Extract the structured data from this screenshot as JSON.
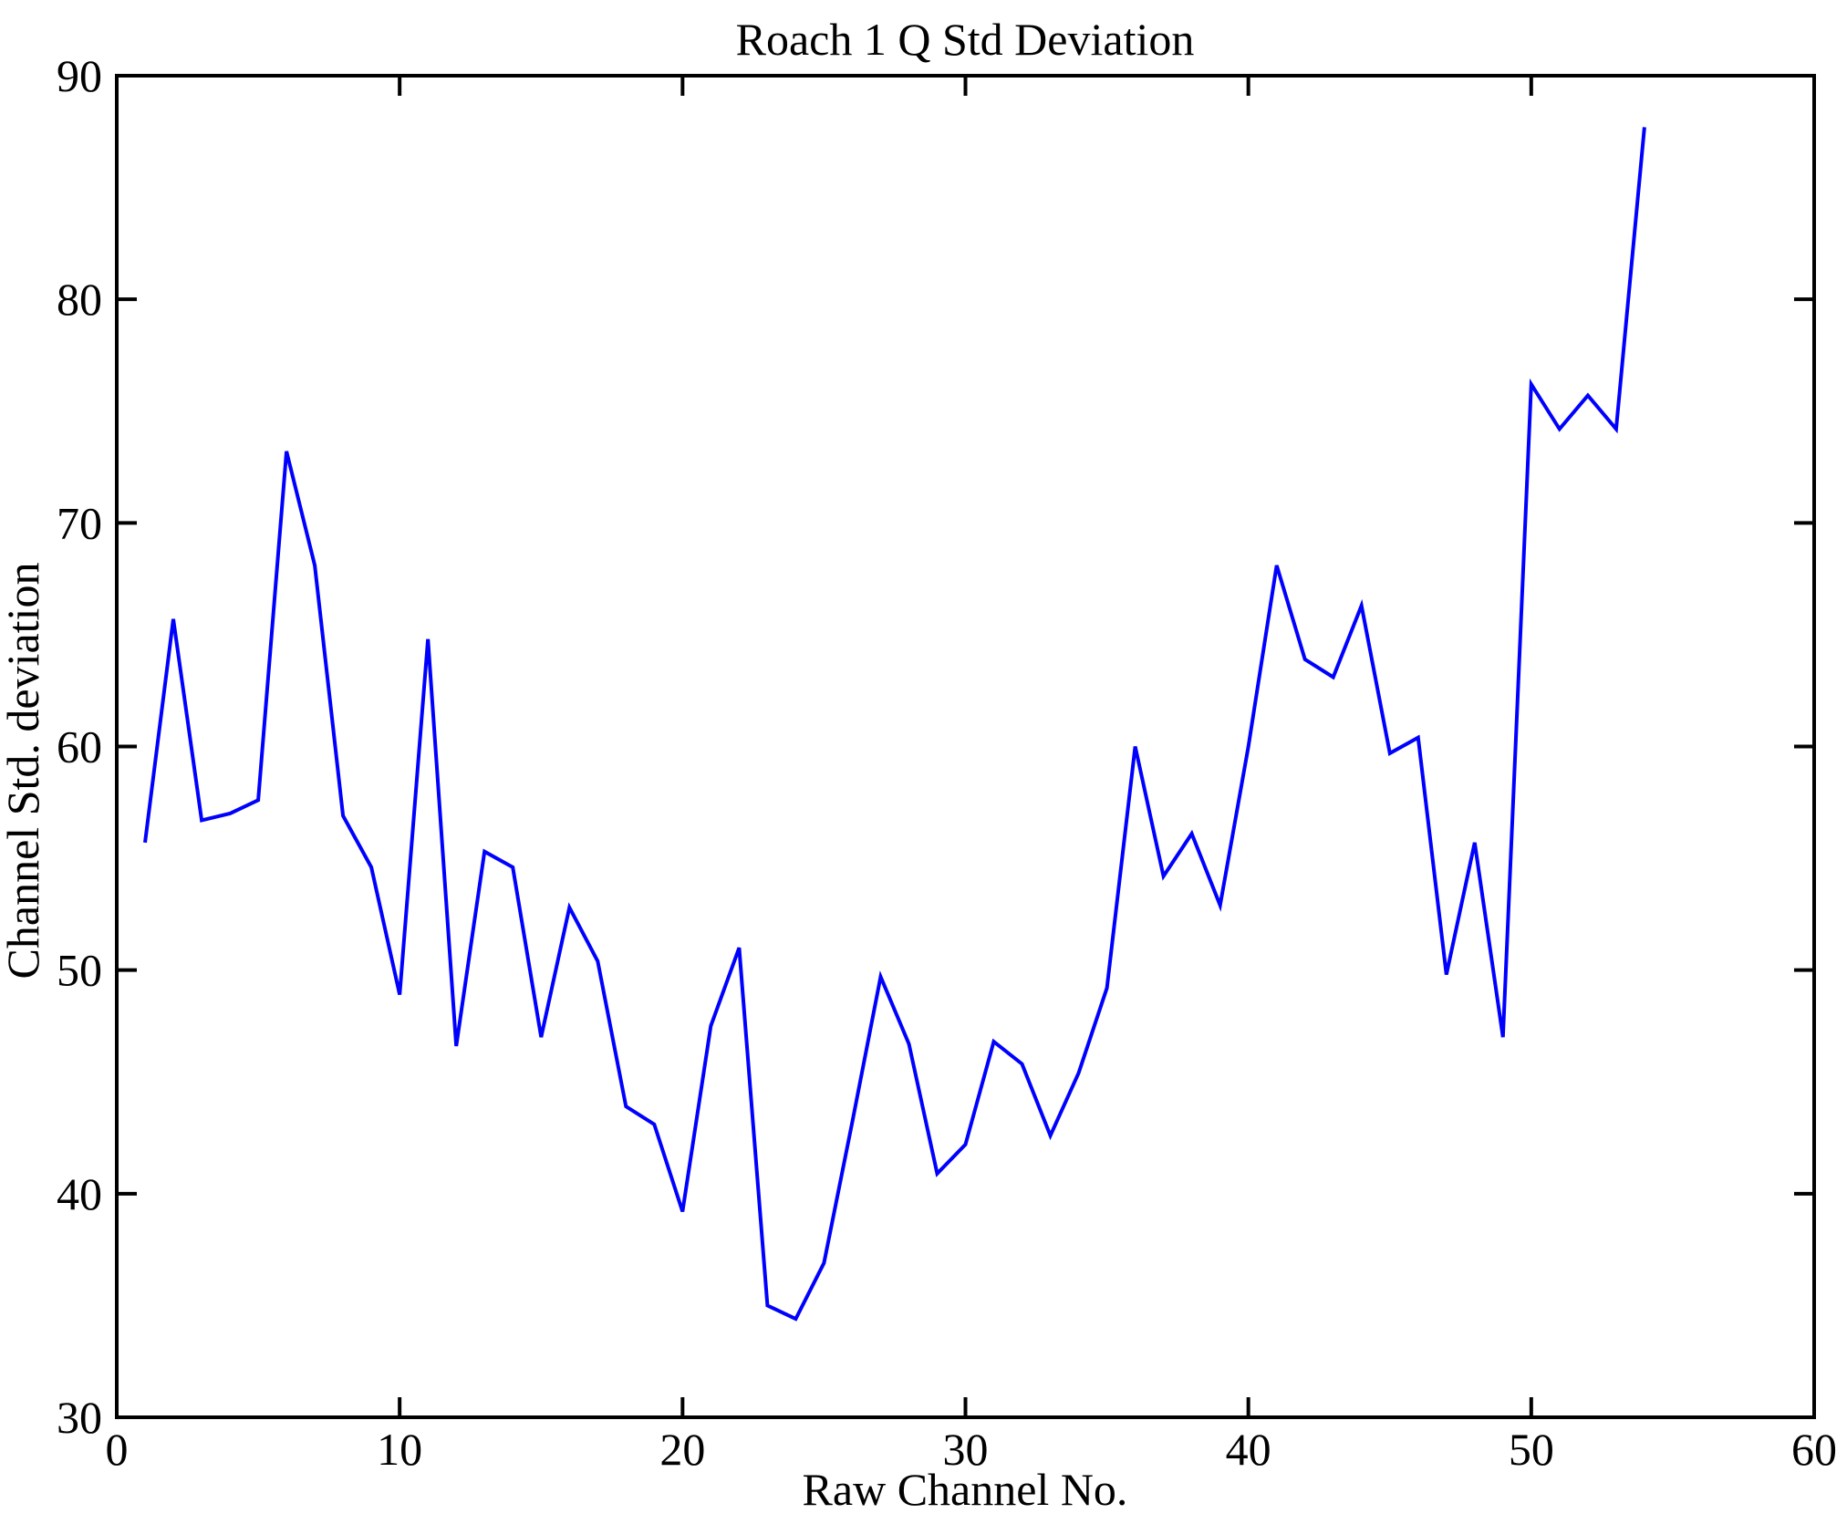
{
  "figure": {
    "title": "Roach 1 Q Std Deviation",
    "background": "#ffffff"
  },
  "chart_data": {
    "type": "line",
    "title": "Roach 1 Q Std Deviation",
    "xlabel": "Raw Channel No.",
    "ylabel": "Channel Std. deviation",
    "xlim": [
      0,
      60
    ],
    "ylim": [
      30,
      90
    ],
    "xticks": [
      0,
      10,
      20,
      30,
      40,
      50,
      60
    ],
    "yticks": [
      30,
      40,
      50,
      60,
      70,
      80,
      90
    ],
    "grid": false,
    "legend": "none",
    "line_color": "#0000ff",
    "axis_color": "#000000",
    "x": [
      1,
      2,
      3,
      4,
      5,
      6,
      7,
      8,
      9,
      10,
      11,
      12,
      13,
      14,
      15,
      16,
      17,
      18,
      19,
      20,
      21,
      22,
      23,
      24,
      25,
      26,
      27,
      28,
      29,
      30,
      31,
      32,
      33,
      34,
      35,
      36,
      37,
      38,
      39,
      40,
      41,
      42,
      43,
      44,
      45,
      46,
      47,
      48,
      49,
      50,
      51,
      52,
      53,
      54
    ],
    "values": [
      55.7,
      65.7,
      56.7,
      57.0,
      57.6,
      73.2,
      68.1,
      56.9,
      54.6,
      48.9,
      64.8,
      46.6,
      55.3,
      54.6,
      47.0,
      52.8,
      50.4,
      43.9,
      43.1,
      39.2,
      47.5,
      51.0,
      35.0,
      34.4,
      36.9,
      43.2,
      49.7,
      46.7,
      40.9,
      42.2,
      46.8,
      45.8,
      42.6,
      45.4,
      49.2,
      60.0,
      54.2,
      56.1,
      52.9,
      60.0,
      68.1,
      63.9,
      63.1,
      66.3,
      59.7,
      60.4,
      49.8,
      55.7,
      47.0,
      76.2,
      74.2,
      75.7,
      74.2,
      87.7
    ]
  }
}
